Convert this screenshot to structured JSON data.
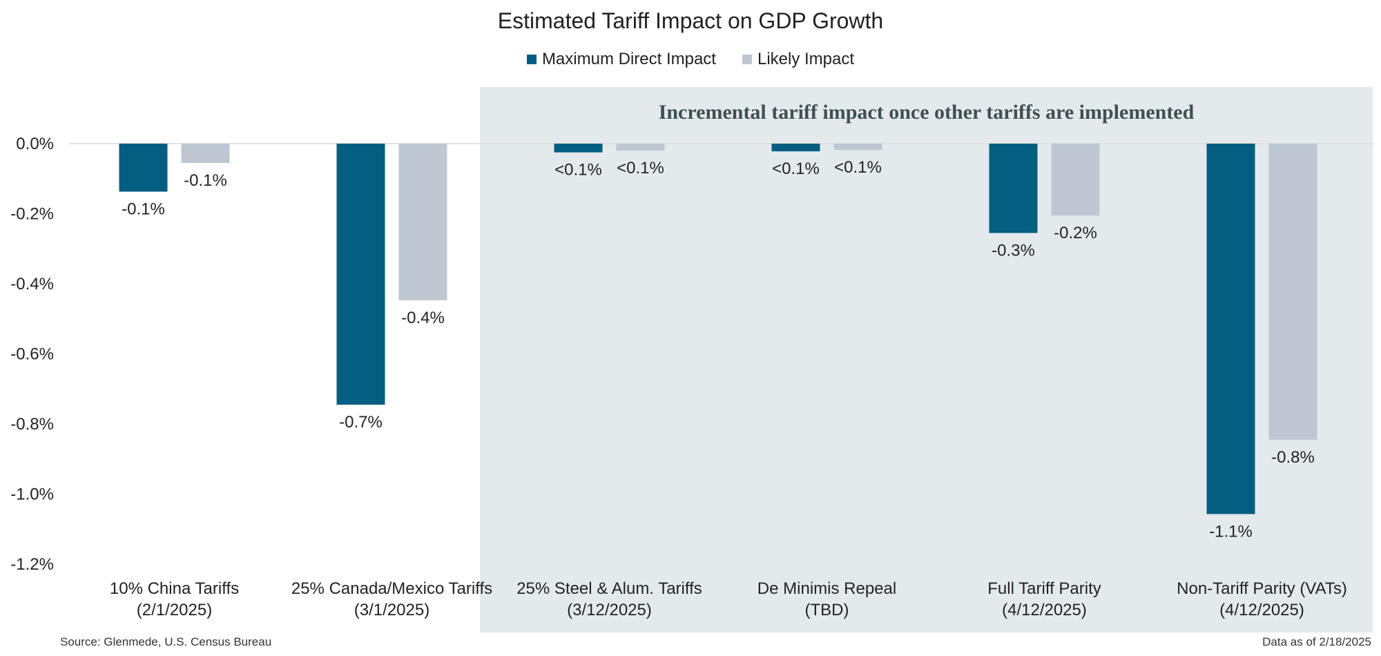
{
  "chart_data": {
    "type": "bar",
    "title": "Estimated Tariff Impact on GDP Growth",
    "categories": [
      [
        "10% China Tariffs",
        "(2/1/2025)"
      ],
      [
        "25% Canada/Mexico Tariffs",
        "(3/1/2025)"
      ],
      [
        "25% Steel & Alum. Tariffs",
        "(3/12/2025)"
      ],
      [
        "De Minimis Repeal",
        "(TBD)"
      ],
      [
        "Full Tariff Parity",
        "(4/12/2025)"
      ],
      [
        "Non-Tariff Parity (VATs)",
        "(4/12/2025)"
      ]
    ],
    "series": [
      {
        "name": "Maximum Direct Impact",
        "color": "#045e82",
        "values": [
          -0.137,
          -0.745,
          -0.025,
          -0.022,
          -0.255,
          -1.057
        ],
        "labels": [
          "-0.1%",
          "-0.7%",
          "<0.1%",
          "<0.1%",
          "-0.3%",
          "-1.1%"
        ]
      },
      {
        "name": "Likely Impact",
        "color": "#bec7d2",
        "values": [
          -0.055,
          -0.447,
          -0.02,
          -0.018,
          -0.205,
          -0.845
        ],
        "labels": [
          "-0.1%",
          "-0.4%",
          "<0.1%",
          "<0.1%",
          "-0.2%",
          "-0.8%"
        ]
      }
    ],
    "ylim": [
      -1.2,
      0.0
    ],
    "yticks": [
      0.0,
      -0.2,
      -0.4,
      -0.6,
      -0.8,
      -1.0,
      -1.2
    ],
    "ytick_labels": [
      "0.0%",
      "-0.2%",
      "-0.4%",
      "-0.6%",
      "-0.8%",
      "-1.0%",
      "-1.2%"
    ],
    "xlabel": "",
    "ylabel": "",
    "shaded_region": {
      "from_category": 2,
      "to_category": 5,
      "label": "Incremental tariff impact once other tariffs are implemented",
      "color": "#e4eaeb"
    }
  },
  "footer": {
    "source": "Source: Glenmede, U.S. Census Bureau",
    "data_as_of": "Data as of 2/18/2025"
  }
}
